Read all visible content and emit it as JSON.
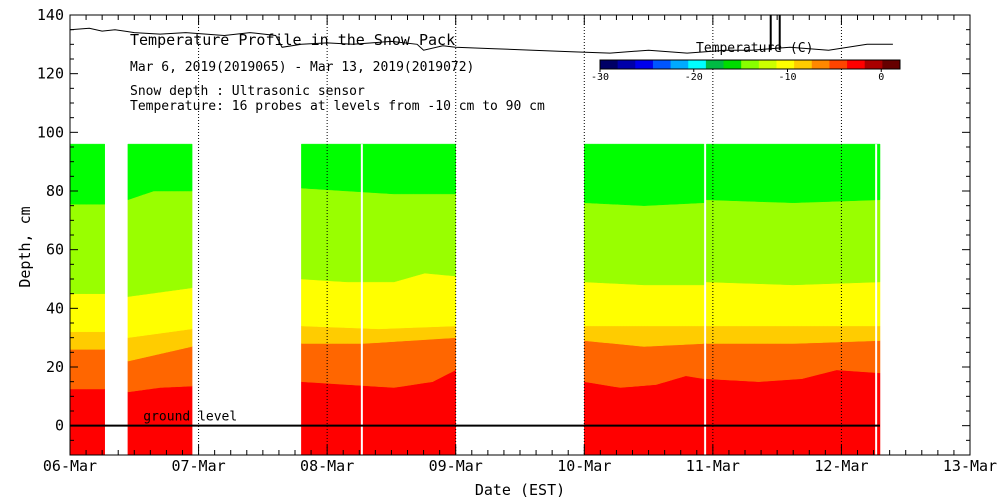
{
  "chart_data": {
    "type": "area",
    "title": "Temperature Profile in the Snow Pack",
    "subtitle": "Mar  6, 2019(2019065) - Mar 13, 2019(2019072)",
    "annotations": [
      "Snow depth : Ultrasonic sensor",
      "Temperature: 16 probes at levels from -10 cm to 90 cm"
    ],
    "ground_label": "ground level",
    "xlabel": "Date (EST)",
    "ylabel": "Depth, cm",
    "xlim": [
      0,
      7
    ],
    "ylim": [
      -10,
      140
    ],
    "x_tick_labels": [
      "06-Mar",
      "07-Mar",
      "08-Mar",
      "09-Mar",
      "10-Mar",
      "11-Mar",
      "12-Mar",
      "13-Mar"
    ],
    "y_ticks": [
      0,
      20,
      40,
      60,
      80,
      100,
      120,
      140
    ],
    "grid": "vertical dotted at day boundaries",
    "colorbar": {
      "title": "Temperature (C)",
      "tick_labels": [
        "-30",
        "-20",
        "-10",
        "0"
      ],
      "tick_values": [
        -30,
        -20,
        -10,
        0
      ],
      "range": [
        -30,
        2
      ],
      "colors": [
        "#000066",
        "#0000aa",
        "#0000ee",
        "#0055ff",
        "#00aaff",
        "#00ffff",
        "#00bb44",
        "#00dd00",
        "#88ff00",
        "#ccff00",
        "#ffff00",
        "#ffcc00",
        "#ff8800",
        "#ff4400",
        "#ff0000",
        "#aa0000",
        "#660000"
      ]
    },
    "band_colors": [
      "#ff0000",
      "#ff6600",
      "#ffcc00",
      "#ffff00",
      "#99ff00",
      "#00ff00"
    ],
    "profile_top": 96,
    "ground": 0,
    "segments": [
      {
        "start": 0.0,
        "end": 0.27,
        "bounds": [
          [
            0,
            12.5
          ],
          [
            0,
            26
          ],
          [
            0,
            32
          ],
          [
            0,
            45
          ],
          [
            0,
            75.5
          ]
        ]
      },
      {
        "start": 0.45,
        "end": 0.95,
        "bounds": [
          [
            0,
            11.5,
            0.5,
            13,
            1,
            13.5
          ],
          [
            0,
            22,
            1,
            27
          ],
          [
            0,
            30,
            1,
            33
          ],
          [
            0,
            44,
            1,
            47
          ],
          [
            0,
            77,
            0.4,
            80,
            1,
            80
          ]
        ]
      },
      {
        "start": 1.8,
        "end": 3.0,
        "bounds": [
          [
            0,
            15,
            0.3,
            14,
            0.6,
            13,
            0.85,
            15,
            1,
            19
          ],
          [
            0,
            28,
            0.4,
            28,
            1,
            30
          ],
          [
            0,
            34,
            0.5,
            33,
            1,
            34
          ],
          [
            0,
            50,
            0.3,
            49,
            0.6,
            49,
            0.8,
            52,
            1,
            51
          ],
          [
            0,
            81,
            0.3,
            80,
            0.6,
            79,
            1,
            79
          ]
        ]
      },
      {
        "start": 4.0,
        "end": 4.93,
        "bounds": [
          [
            0,
            15,
            0.3,
            13,
            0.6,
            14,
            0.85,
            17,
            1,
            16
          ],
          [
            0,
            29,
            0.5,
            27,
            1,
            28
          ],
          [
            0,
            34,
            1,
            34
          ],
          [
            0,
            49,
            0.5,
            48,
            1,
            48
          ],
          [
            0,
            76,
            0.5,
            75,
            1,
            76
          ]
        ]
      },
      {
        "start": 4.95,
        "end": 6.3,
        "bounds": [
          [
            0,
            16,
            0.3,
            15,
            0.55,
            16,
            0.75,
            19,
            1,
            18
          ],
          [
            0,
            28,
            0.5,
            28,
            1,
            29
          ],
          [
            0,
            34,
            1,
            34
          ],
          [
            0,
            49,
            0.5,
            48,
            1,
            49
          ],
          [
            0,
            77,
            0.5,
            76,
            1,
            77
          ]
        ]
      }
    ],
    "gaps_in_segments": [
      2.27,
      6.27
    ],
    "snow_depth": {
      "name": "Snow depth",
      "x": [
        0,
        0.15,
        0.25,
        0.35,
        0.5,
        0.7,
        0.9,
        1.2,
        1.4,
        1.6,
        1.65,
        1.8,
        2.0,
        2.2,
        2.5,
        2.7,
        2.75,
        2.9,
        3.0,
        3.3,
        3.6,
        3.9,
        4.2,
        4.5,
        4.8,
        5.1,
        5.3,
        5.6,
        5.9,
        6.2,
        6.4
      ],
      "values": [
        135,
        135.5,
        134.5,
        135,
        134,
        133.5,
        134,
        133,
        134,
        133,
        129,
        130,
        130.5,
        130,
        131,
        130,
        128,
        129.5,
        129,
        128.5,
        128,
        127.5,
        127,
        128,
        127,
        128,
        128,
        129,
        128,
        130,
        130
      ],
      "spikes": [
        {
          "x": 5.45,
          "to": 140
        },
        {
          "x": 5.52,
          "to": 140
        }
      ]
    }
  }
}
